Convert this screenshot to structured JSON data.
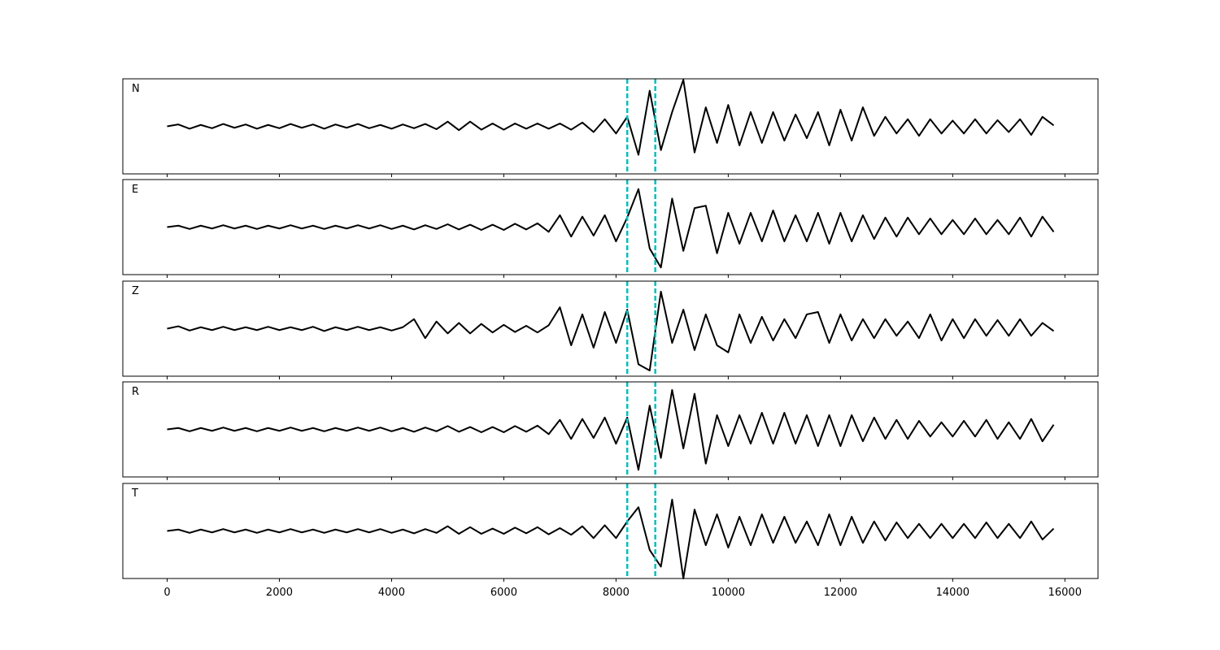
{
  "chart_data": [
    {
      "type": "line",
      "label": "N",
      "color": "#000000",
      "vlines": [
        8200,
        8700
      ],
      "vline_color": "#00bfbf",
      "xlim": [
        -790,
        16590
      ],
      "ylim": [
        -1,
        1
      ],
      "x": [
        0,
        200,
        400,
        600,
        800,
        1000,
        1200,
        1400,
        1600,
        1800,
        2000,
        2200,
        2400,
        2600,
        2800,
        3000,
        3200,
        3400,
        3600,
        3800,
        4000,
        4200,
        4400,
        4600,
        4800,
        5000,
        5200,
        5400,
        5600,
        5800,
        6000,
        6200,
        6400,
        6600,
        6800,
        7000,
        7200,
        7400,
        7600,
        7800,
        8000,
        8200,
        8400,
        8600,
        8800,
        9000,
        9200,
        9400,
        9600,
        9800,
        10000,
        10200,
        10400,
        10600,
        10800,
        11000,
        11200,
        11400,
        11600,
        11800,
        12000,
        12200,
        12400,
        12600,
        12800,
        13000,
        13200,
        13400,
        13600,
        13800,
        14000,
        14200,
        14400,
        14600,
        14800,
        15000,
        15200,
        15400,
        15600,
        15800
      ],
      "values": [
        0,
        0.04,
        -0.05,
        0.03,
        -0.04,
        0.05,
        -0.03,
        0.04,
        -0.05,
        0.03,
        -0.04,
        0.05,
        -0.03,
        0.04,
        -0.05,
        0.04,
        -0.03,
        0.05,
        -0.04,
        0.03,
        -0.05,
        0.04,
        -0.04,
        0.05,
        -0.06,
        0.1,
        -0.08,
        0.1,
        -0.07,
        0.06,
        -0.07,
        0.06,
        -0.05,
        0.06,
        -0.05,
        0.06,
        -0.07,
        0.08,
        -0.12,
        0.15,
        -0.15,
        0.2,
        -0.6,
        0.75,
        -0.5,
        0.3,
        0.98,
        -0.55,
        0.4,
        -0.35,
        0.45,
        -0.4,
        0.3,
        -0.35,
        0.3,
        -0.3,
        0.25,
        -0.25,
        0.3,
        -0.4,
        0.35,
        -0.3,
        0.4,
        -0.2,
        0.2,
        -0.15,
        0.15,
        -0.2,
        0.15,
        -0.15,
        0.12,
        -0.15,
        0.15,
        -0.15,
        0.13,
        -0.12,
        0.15,
        -0.18,
        0.2,
        0.02
      ]
    },
    {
      "type": "line",
      "label": "E",
      "color": "#000000",
      "vlines": [
        8200,
        8700
      ],
      "vline_color": "#00bfbf",
      "xlim": [
        -790,
        16590
      ],
      "ylim": [
        -1,
        1
      ],
      "x": [
        0,
        200,
        400,
        600,
        800,
        1000,
        1200,
        1400,
        1600,
        1800,
        2000,
        2200,
        2400,
        2600,
        2800,
        3000,
        3200,
        3400,
        3600,
        3800,
        4000,
        4200,
        4400,
        4600,
        4800,
        5000,
        5200,
        5400,
        5600,
        5800,
        6000,
        6200,
        6400,
        6600,
        6800,
        7000,
        7200,
        7400,
        7600,
        7800,
        8000,
        8200,
        8400,
        8600,
        8800,
        9000,
        9200,
        9400,
        9600,
        9800,
        10000,
        10200,
        10400,
        10600,
        10800,
        11000,
        11200,
        11400,
        11600,
        11800,
        12000,
        12200,
        12400,
        12600,
        12800,
        13000,
        13200,
        13400,
        13600,
        13800,
        14000,
        14200,
        14400,
        14600,
        14800,
        15000,
        15200,
        15400,
        15600,
        15800
      ],
      "values": [
        0,
        0.03,
        -0.04,
        0.03,
        -0.03,
        0.04,
        -0.03,
        0.03,
        -0.04,
        0.03,
        -0.03,
        0.04,
        -0.03,
        0.03,
        -0.04,
        0.03,
        -0.03,
        0.04,
        -0.03,
        0.04,
        -0.04,
        0.03,
        -0.05,
        0.04,
        -0.04,
        0.06,
        -0.05,
        0.05,
        -0.06,
        0.05,
        -0.06,
        0.07,
        -0.05,
        0.08,
        -0.1,
        0.25,
        -0.2,
        0.22,
        -0.18,
        0.25,
        -0.3,
        0.2,
        0.8,
        -0.45,
        -0.85,
        0.6,
        -0.5,
        0.4,
        0.45,
        -0.55,
        0.3,
        -0.35,
        0.3,
        -0.3,
        0.35,
        -0.3,
        0.25,
        -0.3,
        0.3,
        -0.35,
        0.3,
        -0.3,
        0.25,
        -0.25,
        0.2,
        -0.2,
        0.2,
        -0.15,
        0.18,
        -0.15,
        0.15,
        -0.15,
        0.18,
        -0.15,
        0.15,
        -0.15,
        0.2,
        -0.2,
        0.22,
        -0.1
      ]
    },
    {
      "type": "line",
      "label": "Z",
      "color": "#000000",
      "vlines": [
        8200,
        8700
      ],
      "vline_color": "#00bfbf",
      "xlim": [
        -790,
        16590
      ],
      "ylim": [
        -1,
        1
      ],
      "x": [
        0,
        200,
        400,
        600,
        800,
        1000,
        1200,
        1400,
        1600,
        1800,
        2000,
        2200,
        2400,
        2600,
        2800,
        3000,
        3200,
        3400,
        3600,
        3800,
        4000,
        4200,
        4400,
        4600,
        4800,
        5000,
        5200,
        5400,
        5600,
        5800,
        6000,
        6200,
        6400,
        6600,
        6800,
        7000,
        7200,
        7400,
        7600,
        7800,
        8000,
        8200,
        8400,
        8600,
        8800,
        9000,
        9200,
        9400,
        9600,
        9800,
        10000,
        10200,
        10400,
        10600,
        10800,
        11000,
        11200,
        11400,
        11600,
        11800,
        12000,
        12200,
        12400,
        12600,
        12800,
        13000,
        13200,
        13400,
        13600,
        13800,
        14000,
        14200,
        14400,
        14600,
        14800,
        15000,
        15200,
        15400,
        15600,
        15800
      ],
      "values": [
        0,
        0.05,
        -0.04,
        0.03,
        -0.03,
        0.04,
        -0.03,
        0.03,
        -0.03,
        0.04,
        -0.03,
        0.03,
        -0.03,
        0.04,
        -0.05,
        0.03,
        -0.03,
        0.04,
        -0.03,
        0.03,
        -0.04,
        0.03,
        0.2,
        -0.2,
        0.15,
        -0.1,
        0.12,
        -0.1,
        0.1,
        -0.08,
        0.08,
        -0.07,
        0.06,
        -0.08,
        0.07,
        0.45,
        -0.35,
        0.3,
        -0.4,
        0.35,
        -0.3,
        0.4,
        -0.75,
        -0.88,
        0.78,
        -0.3,
        0.4,
        -0.45,
        0.3,
        -0.35,
        -0.5,
        0.3,
        -0.3,
        0.25,
        -0.25,
        0.2,
        -0.2,
        0.3,
        0.35,
        -0.3,
        0.3,
        -0.25,
        0.2,
        -0.2,
        0.2,
        -0.15,
        0.15,
        -0.2,
        0.3,
        -0.25,
        0.2,
        -0.2,
        0.2,
        -0.15,
        0.18,
        -0.15,
        0.2,
        -0.15,
        0.12,
        -0.05
      ]
    },
    {
      "type": "line",
      "label": "R",
      "color": "#000000",
      "vlines": [
        8200,
        8700
      ],
      "vline_color": "#00bfbf",
      "xlim": [
        -790,
        16590
      ],
      "ylim": [
        -1,
        1
      ],
      "x": [
        0,
        200,
        400,
        600,
        800,
        1000,
        1200,
        1400,
        1600,
        1800,
        2000,
        2200,
        2400,
        2600,
        2800,
        3000,
        3200,
        3400,
        3600,
        3800,
        4000,
        4200,
        4400,
        4600,
        4800,
        5000,
        5200,
        5400,
        5600,
        5800,
        6000,
        6200,
        6400,
        6600,
        6800,
        7000,
        7200,
        7400,
        7600,
        7800,
        8000,
        8200,
        8400,
        8600,
        8800,
        9000,
        9200,
        9400,
        9600,
        9800,
        10000,
        10200,
        10400,
        10600,
        10800,
        11000,
        11200,
        11400,
        11600,
        11800,
        12000,
        12200,
        12400,
        12600,
        12800,
        13000,
        13200,
        13400,
        13600,
        13800,
        14000,
        14200,
        14400,
        14600,
        14800,
        15000,
        15200,
        15400,
        15600,
        15800
      ],
      "values": [
        0,
        0.03,
        -0.04,
        0.03,
        -0.03,
        0.04,
        -0.03,
        0.03,
        -0.04,
        0.03,
        -0.03,
        0.04,
        -0.03,
        0.03,
        -0.04,
        0.03,
        -0.03,
        0.04,
        -0.03,
        0.04,
        -0.04,
        0.03,
        -0.05,
        0.04,
        -0.04,
        0.07,
        -0.05,
        0.05,
        -0.06,
        0.05,
        -0.06,
        0.07,
        -0.05,
        0.08,
        -0.1,
        0.2,
        -0.2,
        0.22,
        -0.18,
        0.25,
        -0.3,
        0.25,
        -0.85,
        0.5,
        -0.6,
        0.83,
        -0.4,
        0.75,
        -0.72,
        0.3,
        -0.35,
        0.3,
        -0.3,
        0.35,
        -0.3,
        0.35,
        -0.3,
        0.3,
        -0.35,
        0.3,
        -0.35,
        0.3,
        -0.25,
        0.25,
        -0.2,
        0.2,
        -0.2,
        0.18,
        -0.15,
        0.15,
        -0.15,
        0.18,
        -0.15,
        0.2,
        -0.2,
        0.15,
        -0.2,
        0.22,
        -0.25,
        0.1
      ]
    },
    {
      "type": "line",
      "label": "T",
      "color": "#000000",
      "vlines": [
        8200,
        8700
      ],
      "vline_color": "#00bfbf",
      "xlim": [
        -790,
        16590
      ],
      "ylim": [
        -1,
        1
      ],
      "xticks": [
        0,
        2000,
        4000,
        6000,
        8000,
        10000,
        12000,
        14000,
        16000
      ],
      "x": [
        0,
        200,
        400,
        600,
        800,
        1000,
        1200,
        1400,
        1600,
        1800,
        2000,
        2200,
        2400,
        2600,
        2800,
        3000,
        3200,
        3400,
        3600,
        3800,
        4000,
        4200,
        4400,
        4600,
        4800,
        5000,
        5200,
        5400,
        5600,
        5800,
        6000,
        6200,
        6400,
        6600,
        6800,
        7000,
        7200,
        7400,
        7600,
        7800,
        8000,
        8200,
        8400,
        8600,
        8800,
        9000,
        9200,
        9400,
        9600,
        9800,
        10000,
        10200,
        10400,
        10600,
        10800,
        11000,
        11200,
        11400,
        11600,
        11800,
        12000,
        12200,
        12400,
        12600,
        12800,
        13000,
        13200,
        13400,
        13600,
        13800,
        14000,
        14200,
        14400,
        14600,
        14800,
        15000,
        15200,
        15400,
        15600,
        15800
      ],
      "values": [
        0,
        0.03,
        -0.04,
        0.03,
        -0.03,
        0.04,
        -0.03,
        0.03,
        -0.04,
        0.03,
        -0.03,
        0.04,
        -0.03,
        0.03,
        -0.04,
        0.03,
        -0.03,
        0.04,
        -0.03,
        0.04,
        -0.04,
        0.03,
        -0.05,
        0.04,
        -0.04,
        0.1,
        -0.06,
        0.08,
        -0.06,
        0.05,
        -0.06,
        0.07,
        -0.05,
        0.08,
        -0.07,
        0.06,
        -0.08,
        0.1,
        -0.15,
        0.12,
        -0.15,
        0.2,
        0.5,
        -0.4,
        -0.75,
        0.66,
        -1.0,
        0.45,
        -0.3,
        0.35,
        -0.35,
        0.3,
        -0.3,
        0.35,
        -0.25,
        0.3,
        -0.25,
        0.2,
        -0.3,
        0.35,
        -0.3,
        0.3,
        -0.25,
        0.2,
        -0.2,
        0.18,
        -0.15,
        0.15,
        -0.15,
        0.15,
        -0.15,
        0.15,
        -0.15,
        0.18,
        -0.15,
        0.15,
        -0.15,
        0.2,
        -0.18,
        0.05
      ]
    }
  ]
}
